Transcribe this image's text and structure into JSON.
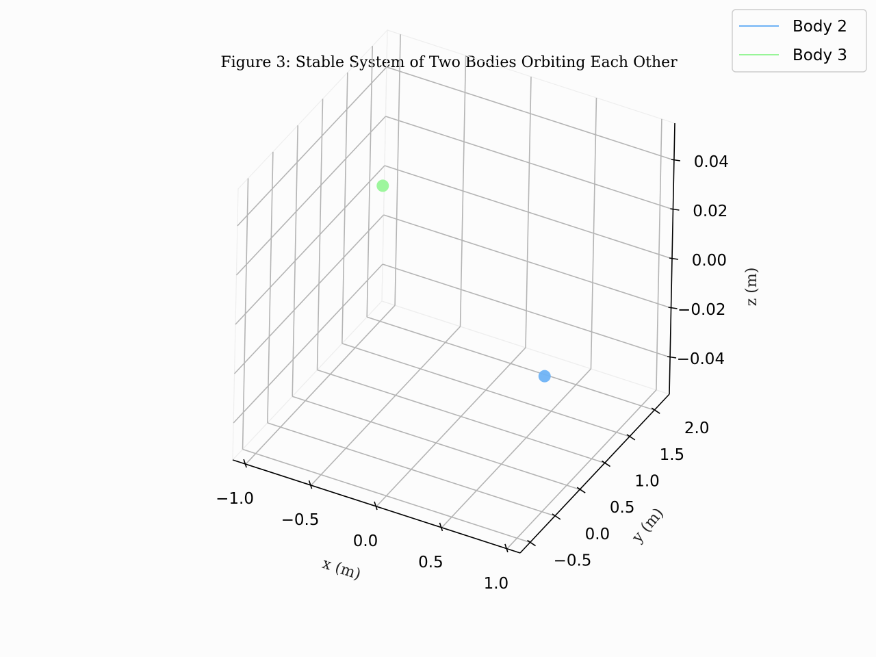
{
  "chart_data": {
    "type": "scatter",
    "title": "Figure 3: Stable System of Two Bodies Orbiting Each Other",
    "xlabel": "x (m)",
    "ylabel": "y (m)",
    "zlabel": "z (m)",
    "xlim": [
      -1.1,
      1.1
    ],
    "ylim": [
      -0.7,
      2.3
    ],
    "zlim": [
      -0.055,
      0.055
    ],
    "x_ticks": [
      {
        "value": -1.0,
        "label": "−1.0"
      },
      {
        "value": -0.5,
        "label": "−0.5"
      },
      {
        "value": 0.0,
        "label": "0.0"
      },
      {
        "value": 0.5,
        "label": "0.5"
      },
      {
        "value": 1.0,
        "label": "1.0"
      }
    ],
    "y_ticks": [
      {
        "value": -0.5,
        "label": "−0.5"
      },
      {
        "value": 0.0,
        "label": "0.0"
      },
      {
        "value": 0.5,
        "label": "0.5"
      },
      {
        "value": 1.0,
        "label": "1.0"
      },
      {
        "value": 1.5,
        "label": "1.5"
      },
      {
        "value": 2.0,
        "label": "2.0"
      }
    ],
    "z_ticks": [
      {
        "value": -0.04,
        "label": "−0.04"
      },
      {
        "value": -0.02,
        "label": "−0.02"
      },
      {
        "value": 0.0,
        "label": "0.00"
      },
      {
        "value": 0.02,
        "label": "0.02"
      },
      {
        "value": 0.04,
        "label": "0.04"
      }
    ],
    "grid": true,
    "legend_position": "top-right",
    "series": [
      {
        "name": "Body 2",
        "color": "#6fb3f5",
        "points": [
          {
            "x": 1.0,
            "y": 0.0,
            "z": 0.0
          }
        ]
      },
      {
        "name": "Body 3",
        "color": "#98f598",
        "points": [
          {
            "x": -1.0,
            "y": 2.0,
            "z": 0.0
          }
        ]
      }
    ]
  }
}
